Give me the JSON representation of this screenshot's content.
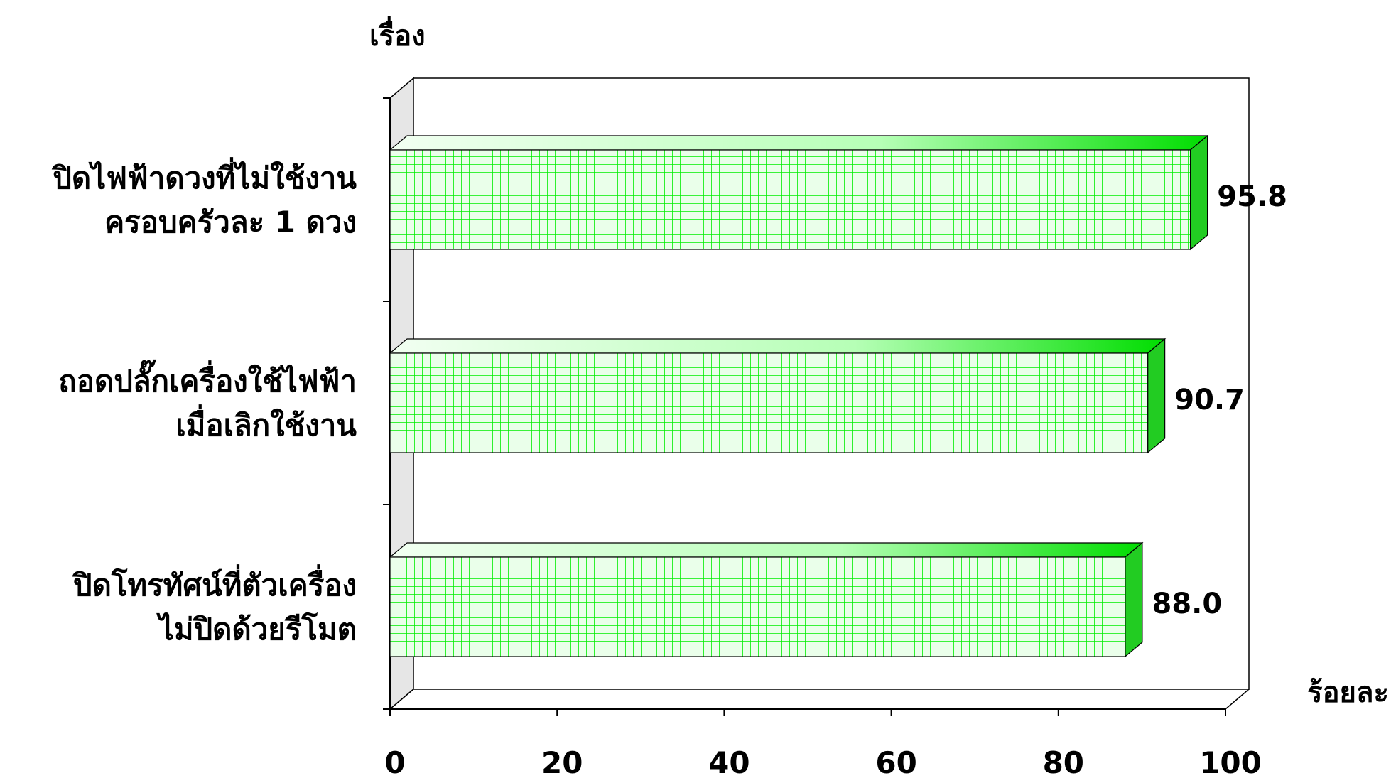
{
  "chart_data": {
    "type": "bar",
    "orientation": "horizontal",
    "style": "3d",
    "categories": [
      [
        "ปิดไฟฟ้าดวงที่ไม่ใช้งาน",
        "ครอบครัวละ 1 ดวง"
      ],
      [
        "ถอดปลั๊กเครื่องใช้ไฟฟ้า",
        "เมื่อเลิกใช้งาน"
      ],
      [
        "ปิดโทรทัศน์ที่ตัวเครื่อง",
        "ไม่ปิดด้วยรีโมต"
      ]
    ],
    "values": [
      95.8,
      90.7,
      88.0
    ],
    "value_labels": [
      "95.8",
      "90.7",
      "88.0"
    ],
    "ylabel": "เรื่อง",
    "xlabel": "ร้อยละ",
    "xlim": [
      0,
      100
    ],
    "xticks": [
      0,
      20,
      40,
      60,
      80,
      100
    ],
    "xtick_labels": [
      "0",
      "20",
      "40",
      "60",
      "80",
      "100"
    ],
    "grid": false,
    "legend": "none",
    "colors": {
      "bar_face": "#eaffea",
      "bar_pattern": "#00ee00",
      "bar_top_light": "#f2fff2",
      "bar_top_dark": "#00dd00",
      "bar_side": "#22cc22",
      "back_wall": "#ffffff",
      "side_wall": "#e6e6e6",
      "axis": "#000000"
    }
  }
}
